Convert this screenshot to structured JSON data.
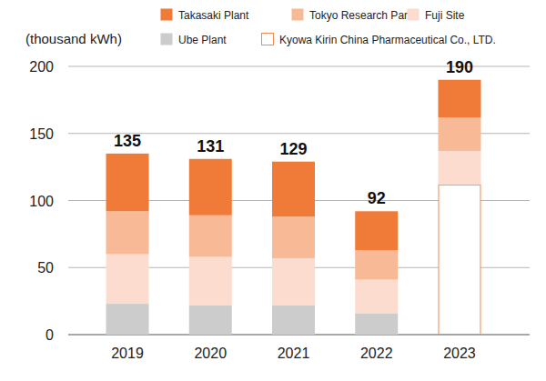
{
  "chart_data": {
    "type": "bar",
    "stacked": true,
    "y_label": "(thousand kWh)",
    "categories": [
      "2019",
      "2020",
      "2021",
      "2022",
      "2023"
    ],
    "series": [
      {
        "name": "Takasaki Plant",
        "color": "#f07a38",
        "values": [
          43,
          42,
          41,
          29,
          28
        ]
      },
      {
        "name": "Tokyo Research Park",
        "color": "#f7b996",
        "values": [
          32,
          31,
          31,
          22,
          25
        ]
      },
      {
        "name": "Fuji Site",
        "color": "#fcdccf",
        "values": [
          37,
          36,
          35,
          25,
          25
        ]
      },
      {
        "name": "Ube Plant",
        "color": "#cccccc",
        "values": [
          23,
          22,
          22,
          16,
          null
        ]
      },
      {
        "name": "Kyowa Kirin China Pharmaceutical Co., LTD.",
        "color": "#ffffff",
        "values": [
          null,
          null,
          null,
          null,
          112
        ]
      }
    ],
    "totals": [
      135,
      131,
      129,
      92,
      190
    ],
    "ylim": [
      0,
      200
    ],
    "yticks": [
      0,
      50,
      100,
      150,
      200
    ],
    "grid": true,
    "legend": "top"
  }
}
